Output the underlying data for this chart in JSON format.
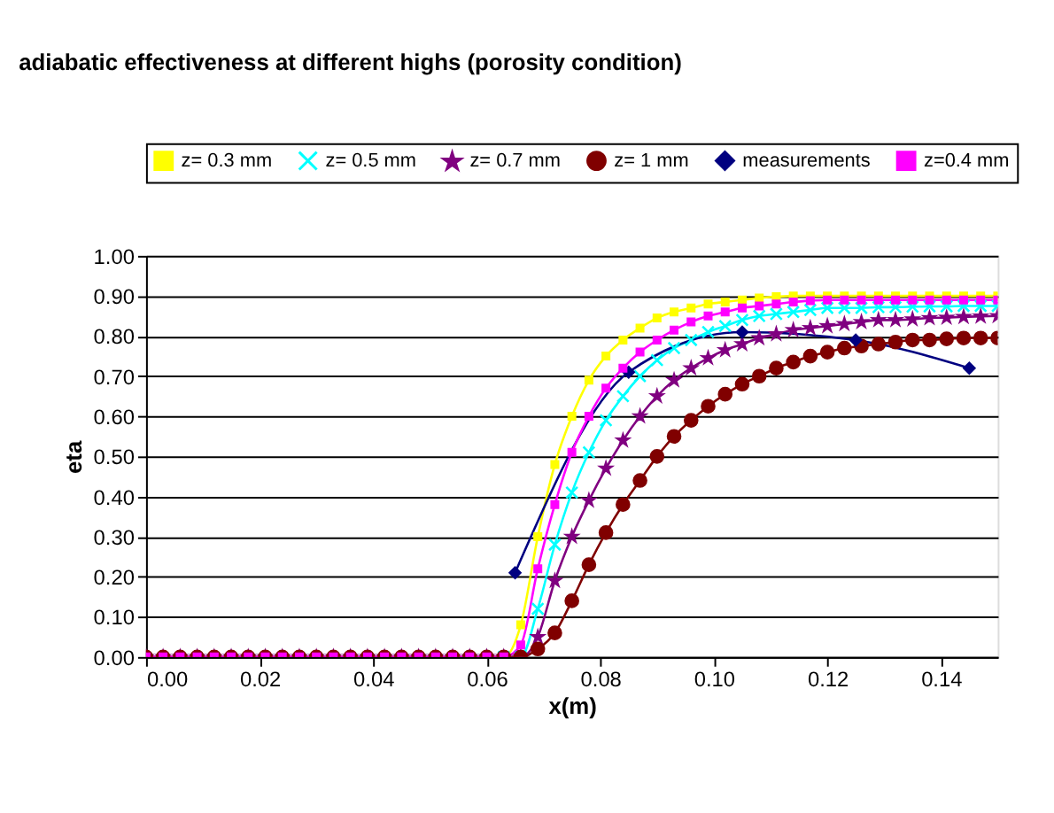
{
  "chart_data": {
    "type": "line",
    "title": "adiabatic effectiveness at different highs (porosity condition)",
    "xlabel": "x(m)",
    "ylabel": "eta",
    "x": [
      0,
      0.003,
      0.006,
      0.009,
      0.012,
      0.015,
      0.018,
      0.021,
      0.024,
      0.027,
      0.03,
      0.033,
      0.036,
      0.039,
      0.042,
      0.045,
      0.048,
      0.051,
      0.054,
      0.057,
      0.06,
      0.063,
      0.066,
      0.069,
      0.072,
      0.075,
      0.078,
      0.081,
      0.084,
      0.087,
      0.09,
      0.093,
      0.096,
      0.099,
      0.102,
      0.105,
      0.108,
      0.111,
      0.114,
      0.117,
      0.12,
      0.123,
      0.126,
      0.129,
      0.132,
      0.135,
      0.138,
      0.141,
      0.144,
      0.147,
      0.15
    ],
    "series": [
      {
        "name": "z= 0.3 mm",
        "color": "#ffff00",
        "marker": "square",
        "values": [
          null,
          null,
          null,
          null,
          null,
          null,
          null,
          null,
          null,
          null,
          null,
          null,
          null,
          null,
          null,
          null,
          null,
          null,
          null,
          null,
          0,
          0,
          0.08,
          0.3,
          0.48,
          0.6,
          0.69,
          0.75,
          0.79,
          0.82,
          0.845,
          0.86,
          0.87,
          0.88,
          0.885,
          0.89,
          0.895,
          0.898,
          0.9,
          0.9,
          0.9,
          0.9,
          0.9,
          0.9,
          0.9,
          0.9,
          0.9,
          0.9,
          0.9,
          0.9,
          0.9
        ]
      },
      {
        "name": "z= 0.5 mm",
        "color": "#00ffff",
        "marker": "cross",
        "values": [
          null,
          null,
          null,
          null,
          null,
          null,
          null,
          null,
          null,
          null,
          null,
          null,
          null,
          null,
          null,
          null,
          null,
          null,
          null,
          null,
          null,
          0,
          0,
          0.12,
          0.28,
          0.41,
          0.51,
          0.59,
          0.65,
          0.7,
          0.74,
          0.77,
          0.79,
          0.81,
          0.825,
          0.84,
          0.85,
          0.855,
          0.86,
          0.865,
          0.87,
          0.87,
          0.87,
          0.872,
          0.872,
          0.873,
          0.874,
          0.874,
          0.875,
          0.875,
          0.875
        ]
      },
      {
        "name": "z= 0.7 mm",
        "color": "#800080",
        "marker": "star",
        "values": [
          0,
          0,
          0,
          0,
          0,
          0,
          0,
          0,
          0,
          0,
          0,
          0,
          0,
          0,
          0,
          0,
          0,
          0,
          0,
          0,
          0,
          0,
          0,
          0.05,
          0.19,
          0.3,
          0.39,
          0.47,
          0.54,
          0.6,
          0.65,
          0.69,
          0.72,
          0.745,
          0.765,
          0.78,
          0.795,
          0.805,
          0.815,
          0.82,
          0.825,
          0.83,
          0.835,
          0.84,
          0.84,
          0.842,
          0.845,
          0.846,
          0.848,
          0.849,
          0.85
        ]
      },
      {
        "name": "z= 1 mm",
        "color": "#800000",
        "marker": "circle",
        "values": [
          0,
          0,
          0,
          0,
          0,
          0,
          0,
          0,
          0,
          0,
          0,
          0,
          0,
          0,
          0,
          0,
          0,
          0,
          0,
          0,
          0,
          0,
          0,
          0.02,
          0.06,
          0.14,
          0.23,
          0.31,
          0.38,
          0.44,
          0.5,
          0.55,
          0.59,
          0.625,
          0.655,
          0.68,
          0.7,
          0.72,
          0.735,
          0.75,
          0.76,
          0.77,
          0.775,
          0.78,
          0.785,
          0.79,
          0.79,
          0.793,
          0.795,
          0.795,
          0.795
        ]
      },
      {
        "name": "measurements",
        "color": "#000080",
        "marker": "diamond",
        "x": [
          0.065,
          0.085,
          0.105,
          0.125,
          0.145
        ],
        "values": [
          0.21,
          0.71,
          0.81,
          0.79,
          0.72
        ]
      },
      {
        "name": "z=0.4 mm",
        "color": "#ff00ff",
        "marker": "square",
        "values": [
          0,
          0,
          0,
          0,
          0,
          0,
          0,
          0,
          0,
          0,
          0,
          0,
          0,
          0,
          0,
          0,
          0,
          0,
          0,
          0,
          0,
          0,
          0.03,
          0.22,
          0.38,
          0.51,
          0.6,
          0.67,
          0.72,
          0.76,
          0.79,
          0.815,
          0.835,
          0.85,
          0.86,
          0.87,
          0.875,
          0.88,
          0.885,
          0.888,
          0.89,
          0.89,
          0.89,
          0.89,
          0.89,
          0.89,
          0.89,
          0.89,
          0.89,
          0.89,
          0.89
        ]
      }
    ],
    "xlim": [
      0,
      0.15
    ],
    "xticks": [
      {
        "value": 0,
        "label": "0.00"
      },
      {
        "value": 0.02,
        "label": "0.02"
      },
      {
        "value": 0.04,
        "label": "0.04"
      },
      {
        "value": 0.06,
        "label": "0.06"
      },
      {
        "value": 0.08,
        "label": "0.08"
      },
      {
        "value": 0.1,
        "label": "0.10"
      },
      {
        "value": 0.12,
        "label": "0.12"
      },
      {
        "value": 0.14,
        "label": "0.14"
      }
    ],
    "ylim": [
      0,
      1
    ],
    "yticks": [
      {
        "value": 0,
        "label": "0.00"
      },
      {
        "value": 0.1,
        "label": "0.10"
      },
      {
        "value": 0.2,
        "label": "0.20"
      },
      {
        "value": 0.3,
        "label": "0.30"
      },
      {
        "value": 0.4,
        "label": "0.40"
      },
      {
        "value": 0.5,
        "label": "0.50"
      },
      {
        "value": 0.6,
        "label": "0.60"
      },
      {
        "value": 0.7,
        "label": "0.70"
      },
      {
        "value": 0.8,
        "label": "0.80"
      },
      {
        "value": 0.9,
        "label": "0.90"
      },
      {
        "value": 1,
        "label": "1.00"
      }
    ],
    "grid": "y",
    "legend": "top",
    "line_style": "solid"
  }
}
